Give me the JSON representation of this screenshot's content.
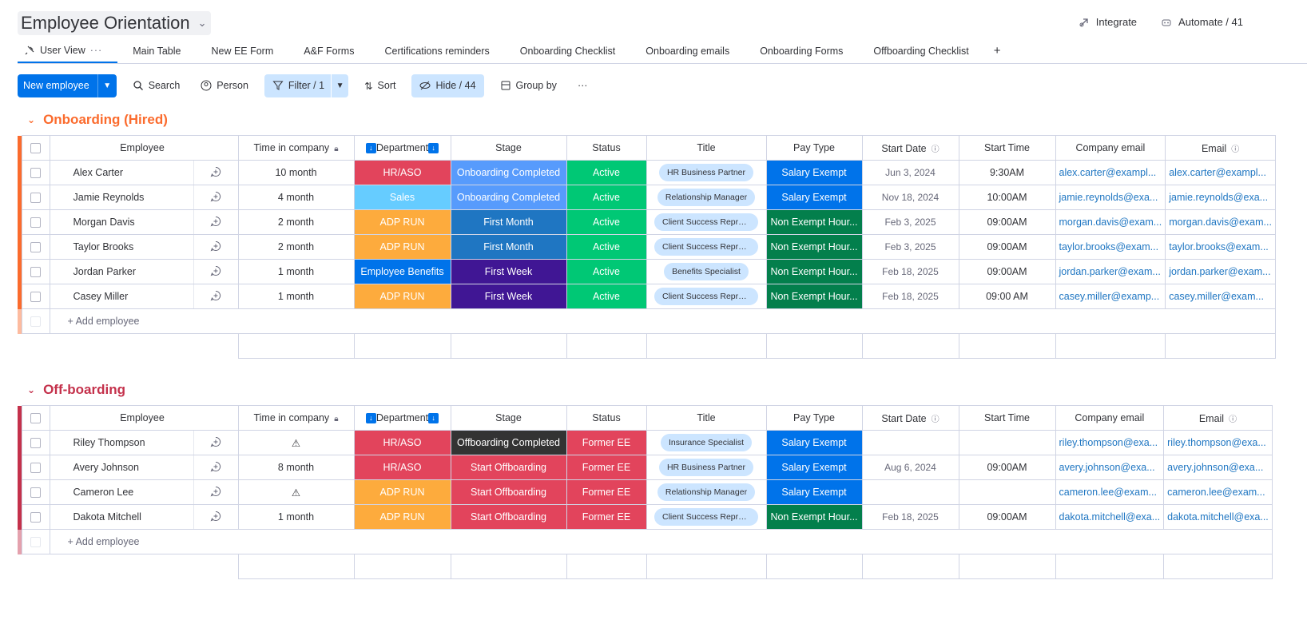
{
  "board": {
    "title": "Employee Orientation"
  },
  "top_actions": {
    "integrate": "Integrate",
    "automate": "Automate / 41"
  },
  "tabs": [
    {
      "label": "User View"
    },
    {
      "label": "Main Table"
    },
    {
      "label": "New EE Form"
    },
    {
      "label": "A&F Forms"
    },
    {
      "label": "Certifications reminders"
    },
    {
      "label": "Onboarding Checklist"
    },
    {
      "label": "Onboarding emails"
    },
    {
      "label": "Onboarding Forms"
    },
    {
      "label": "Offboarding Checklist"
    }
  ],
  "toolbar": {
    "new_item": "New employee",
    "search": "Search",
    "person": "Person",
    "filter": "Filter / 1",
    "sort": "Sort",
    "hide": "Hide / 44",
    "group_by": "Group by"
  },
  "columns": [
    "Employee",
    "Time in company",
    "Department",
    "Stage",
    "Status",
    "Title",
    "Pay Type",
    "Start Date",
    "Start Time",
    "Company email",
    "Email"
  ],
  "colors": {
    "onboarding_group": "#fb6b2d",
    "offboarding_group": "#c4314b",
    "hr_aso": "#e2445c",
    "sales": "#66ccff",
    "adp_run": "#fdab3d",
    "employee_benefits": "#0073ea",
    "onboarding_completed": "#579bfc",
    "first_month": "#1f76c2",
    "first_week": "#401694",
    "offboarding_completed": "#333333",
    "start_offboarding": "#e2445c",
    "active": "#00c875",
    "former_ee": "#e2445c",
    "salary_exempt": "#0073ea",
    "non_exempt_hourly": "#037f4c"
  },
  "groups": [
    {
      "name": "Onboarding (Hired)",
      "add_label": "+ Add employee",
      "rows": [
        {
          "employee": "Alex Carter",
          "time": "10 month",
          "department": "HR/ASO",
          "stage": "Onboarding Completed",
          "status": "Active",
          "title": "HR Business Partner",
          "pay_type": "Salary Exempt",
          "start_date": "Jun 3, 2024",
          "start_time": "9:30AM",
          "company_email": "alex.carter@exampl...",
          "email": "alex.carter@exampl..."
        },
        {
          "employee": "Jamie Reynolds",
          "time": "4 month",
          "department": "Sales",
          "stage": "Onboarding Completed",
          "status": "Active",
          "title": "Relationship Manager",
          "pay_type": "Salary Exempt",
          "start_date": "Nov 18, 2024",
          "start_time": "10:00AM",
          "company_email": "jamie.reynolds@exa...",
          "email": "jamie.reynolds@exa..."
        },
        {
          "employee": "Morgan Davis",
          "time": "2 month",
          "department": "ADP RUN",
          "stage": "First Month",
          "status": "Active",
          "title": "Client Success Represe...",
          "pay_type": "Non Exempt Hour...",
          "start_date": "Feb 3, 2025",
          "start_time": "09:00AM",
          "company_email": "morgan.davis@exam...",
          "email": "morgan.davis@exam..."
        },
        {
          "employee": "Taylor Brooks",
          "time": "2 month",
          "department": "ADP RUN",
          "stage": "First Month",
          "status": "Active",
          "title": "Client Success Represe...",
          "pay_type": "Non Exempt Hour...",
          "start_date": "Feb 3, 2025",
          "start_time": "09:00AM",
          "company_email": "taylor.brooks@exam...",
          "email": "taylor.brooks@exam..."
        },
        {
          "employee": "Jordan Parker",
          "time": "1 month",
          "department": "Employee Benefits",
          "stage": "First Week",
          "status": "Active",
          "title": "Benefits Specialist",
          "pay_type": "Non Exempt Hour...",
          "start_date": "Feb 18, 2025",
          "start_time": "09:00AM",
          "company_email": "jordan.parker@exam...",
          "email": "jordan.parker@exam..."
        },
        {
          "employee": "Casey Miller",
          "time": "1 month",
          "department": "ADP RUN",
          "stage": "First Week",
          "status": "Active",
          "title": "Client Success Represe...",
          "pay_type": "Non Exempt Hour...",
          "start_date": "Feb 18, 2025",
          "start_time": "09:00 AM",
          "company_email": "casey.miller@examp...",
          "email": "casey.miller@exam..."
        }
      ]
    },
    {
      "name": "Off-boarding",
      "add_label": "+ Add employee",
      "rows": [
        {
          "employee": "Riley Thompson",
          "time": "⚠",
          "department": "HR/ASO",
          "stage": "Offboarding Completed",
          "status": "Former EE",
          "title": "Insurance Specialist",
          "pay_type": "Salary Exempt",
          "start_date": "",
          "start_time": "",
          "company_email": "riley.thompson@exa...",
          "email": "riley.thompson@exa..."
        },
        {
          "employee": "Avery Johnson",
          "time": "8 month",
          "department": "HR/ASO",
          "stage": "Start Offboarding",
          "status": "Former EE",
          "title": "HR Business Partner",
          "pay_type": "Salary Exempt",
          "start_date": "Aug 6, 2024",
          "start_time": "09:00AM",
          "company_email": "avery.johnson@exa...",
          "email": "avery.johnson@exa..."
        },
        {
          "employee": "Cameron Lee",
          "time": "⚠",
          "department": "ADP RUN",
          "stage": "Start Offboarding",
          "status": "Former EE",
          "title": "Relationship Manager",
          "pay_type": "Salary Exempt",
          "start_date": "",
          "start_time": "",
          "company_email": "cameron.lee@exam...",
          "email": "cameron.lee@exam..."
        },
        {
          "employee": "Dakota Mitchell",
          "time": "1 month",
          "department": "ADP RUN",
          "stage": "Start Offboarding",
          "status": "Former EE",
          "title": "Client Success Represe...",
          "pay_type": "Non Exempt Hour...",
          "start_date": "Feb 18, 2025",
          "start_time": "09:00AM",
          "company_email": "dakota.mitchell@exa...",
          "email": "dakota.mitchell@exa..."
        }
      ]
    }
  ]
}
